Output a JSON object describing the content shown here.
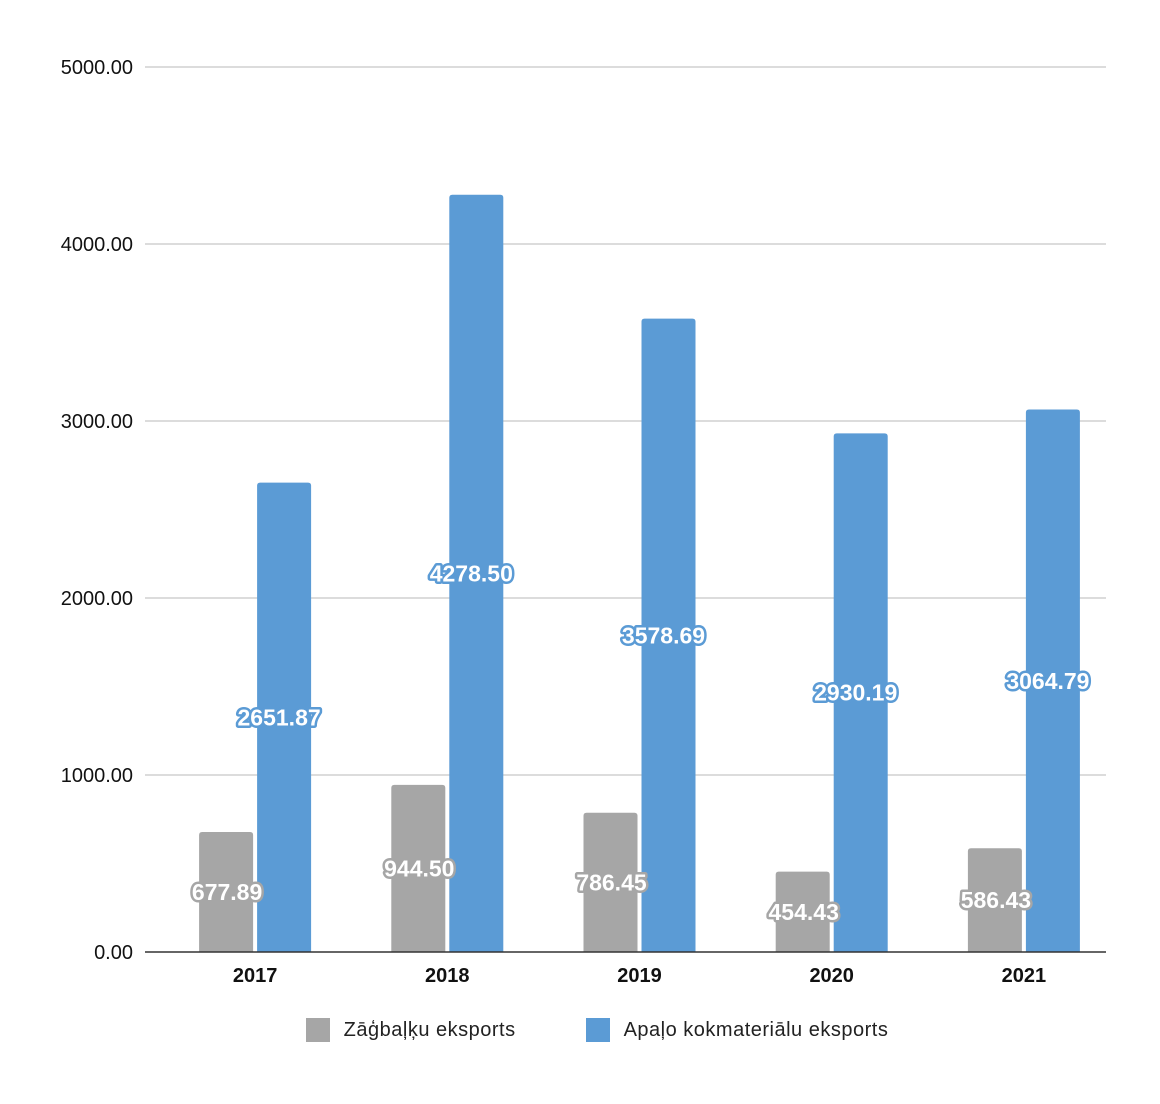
{
  "chart_data": {
    "type": "bar",
    "categories": [
      "2017",
      "2018",
      "2019",
      "2020",
      "2021"
    ],
    "series": [
      {
        "name": "Zāģbaļķu eksports",
        "color": "#a6a6a6",
        "values": [
          677.89,
          944.5,
          786.45,
          454.43,
          586.43
        ],
        "labels": [
          "677.89",
          "944.50",
          "786.45",
          "454.43",
          "586.43"
        ]
      },
      {
        "name": "Apaļo kokmateriālu eksports",
        "color": "#5b9bd5",
        "values": [
          2651.87,
          4278.5,
          3578.69,
          2930.19,
          3064.79
        ],
        "labels": [
          "2651.87",
          "4278.50",
          "3578.69",
          "2930.19",
          "3064.79"
        ]
      }
    ],
    "yticks": [
      "0.00",
      "1000.00",
      "2000.00",
      "3000.00",
      "4000.00",
      "5000.00"
    ],
    "ylim": [
      0,
      5000
    ],
    "title": "",
    "xlabel": "",
    "ylabel": "",
    "grid": true,
    "legend_position": "bottom"
  }
}
